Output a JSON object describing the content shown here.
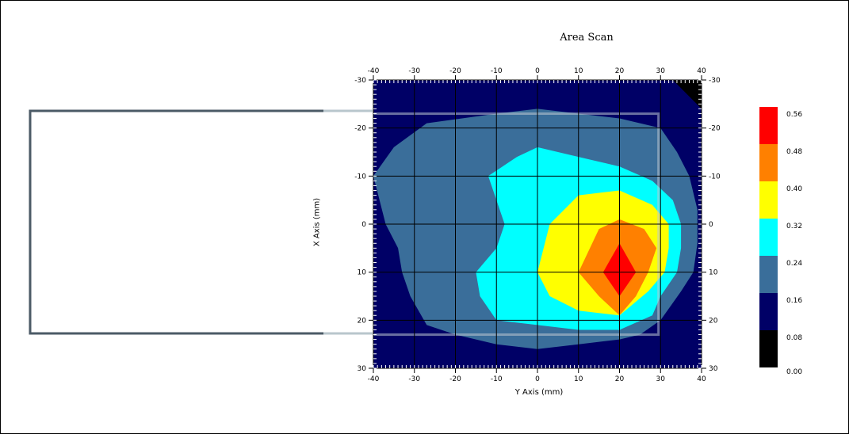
{
  "chart_data": {
    "type": "heatmap",
    "title": "Area Scan",
    "xlabel": "Y Axis (mm)",
    "ylabel": "X Axis (mm)",
    "xlim": [
      -40,
      40
    ],
    "ylim": [
      -30,
      30
    ],
    "y_direction": "top-to-bottom increasing",
    "x_ticks": [
      "-40",
      "-30",
      "-20",
      "-10",
      "0",
      "10",
      "20",
      "30",
      "40"
    ],
    "y_ticks": [
      "-30",
      "-20",
      "-10",
      "0",
      "10",
      "20",
      "30"
    ],
    "grid": true,
    "colorscale": [
      {
        "label": "0.56",
        "from": 0.56,
        "color": "#ff0000"
      },
      {
        "label": "0.48",
        "from": 0.48,
        "color": "#ff8000"
      },
      {
        "label": "0.40",
        "from": 0.4,
        "color": "#ffff00"
      },
      {
        "label": "0.32",
        "from": 0.32,
        "color": "#00ffff"
      },
      {
        "label": "0.24",
        "from": 0.24,
        "color": "#3a6e9a"
      },
      {
        "label": "0.16",
        "from": 0.16,
        "color": "#000066"
      },
      {
        "label": "0.08",
        "from": 0.08,
        "color": "#000000"
      },
      {
        "label": "0.00",
        "from": 0.0,
        "color": null
      }
    ],
    "legend_position": "right",
    "contours": [
      {
        "level": 0.16,
        "color": "#000066",
        "points": [
          [
            -40,
            -30
          ],
          [
            40,
            -30
          ],
          [
            40,
            30
          ],
          [
            -40,
            30
          ]
        ]
      },
      {
        "level": 0.08,
        "color": "#000000",
        "points": [
          [
            33,
            -30
          ],
          [
            40,
            -30
          ],
          [
            40,
            -24
          ]
        ]
      },
      {
        "level": 0.24,
        "color": "#3a6e9a",
        "points": [
          [
            -40,
            -10
          ],
          [
            -35,
            -16
          ],
          [
            -27,
            -21
          ],
          [
            -10,
            -23
          ],
          [
            0,
            -24
          ],
          [
            10,
            -23
          ],
          [
            20,
            -22
          ],
          [
            30,
            -20
          ],
          [
            34,
            -15
          ],
          [
            37,
            -10
          ],
          [
            39,
            -3
          ],
          [
            39,
            0
          ],
          [
            39,
            4
          ],
          [
            38,
            10
          ],
          [
            35,
            14
          ],
          [
            30,
            20
          ],
          [
            25,
            23
          ],
          [
            20,
            24
          ],
          [
            10,
            25
          ],
          [
            0,
            26
          ],
          [
            -10,
            25
          ],
          [
            -20,
            23
          ],
          [
            -27,
            21
          ],
          [
            -31,
            15
          ],
          [
            -33,
            10
          ],
          [
            -34,
            5
          ],
          [
            -37,
            0
          ]
        ]
      },
      {
        "level": 0.32,
        "color": "#00ffff",
        "points": [
          [
            -12,
            -10
          ],
          [
            -5,
            -14
          ],
          [
            0,
            -16
          ],
          [
            10,
            -14
          ],
          [
            20,
            -12
          ],
          [
            28,
            -9
          ],
          [
            33,
            -5
          ],
          [
            35,
            0
          ],
          [
            35,
            5
          ],
          [
            34,
            10
          ],
          [
            30,
            15
          ],
          [
            28,
            19
          ],
          [
            20,
            22
          ],
          [
            10,
            22
          ],
          [
            0,
            21
          ],
          [
            -10,
            20
          ],
          [
            -14,
            15
          ],
          [
            -15,
            10
          ],
          [
            -10,
            5
          ],
          [
            -8,
            0
          ]
        ]
      },
      {
        "level": 0.4,
        "color": "#ffff00",
        "points": [
          [
            3,
            0
          ],
          [
            10,
            -6
          ],
          [
            20,
            -7
          ],
          [
            28,
            -4
          ],
          [
            32,
            0
          ],
          [
            32,
            5
          ],
          [
            31,
            10
          ],
          [
            27,
            14
          ],
          [
            20,
            19
          ],
          [
            10,
            18
          ],
          [
            3,
            15
          ],
          [
            0,
            10
          ]
        ]
      },
      {
        "level": 0.48,
        "color": "#ff8000",
        "points": [
          [
            15,
            1
          ],
          [
            20,
            -1
          ],
          [
            26,
            1
          ],
          [
            29,
            5
          ],
          [
            27,
            10
          ],
          [
            24,
            15
          ],
          [
            20,
            19
          ],
          [
            15,
            15
          ],
          [
            10,
            10
          ]
        ]
      },
      {
        "level": 0.56,
        "color": "#ff0000",
        "points": [
          [
            20,
            4
          ],
          [
            24,
            10
          ],
          [
            20,
            15
          ],
          [
            16,
            10
          ]
        ]
      }
    ]
  }
}
